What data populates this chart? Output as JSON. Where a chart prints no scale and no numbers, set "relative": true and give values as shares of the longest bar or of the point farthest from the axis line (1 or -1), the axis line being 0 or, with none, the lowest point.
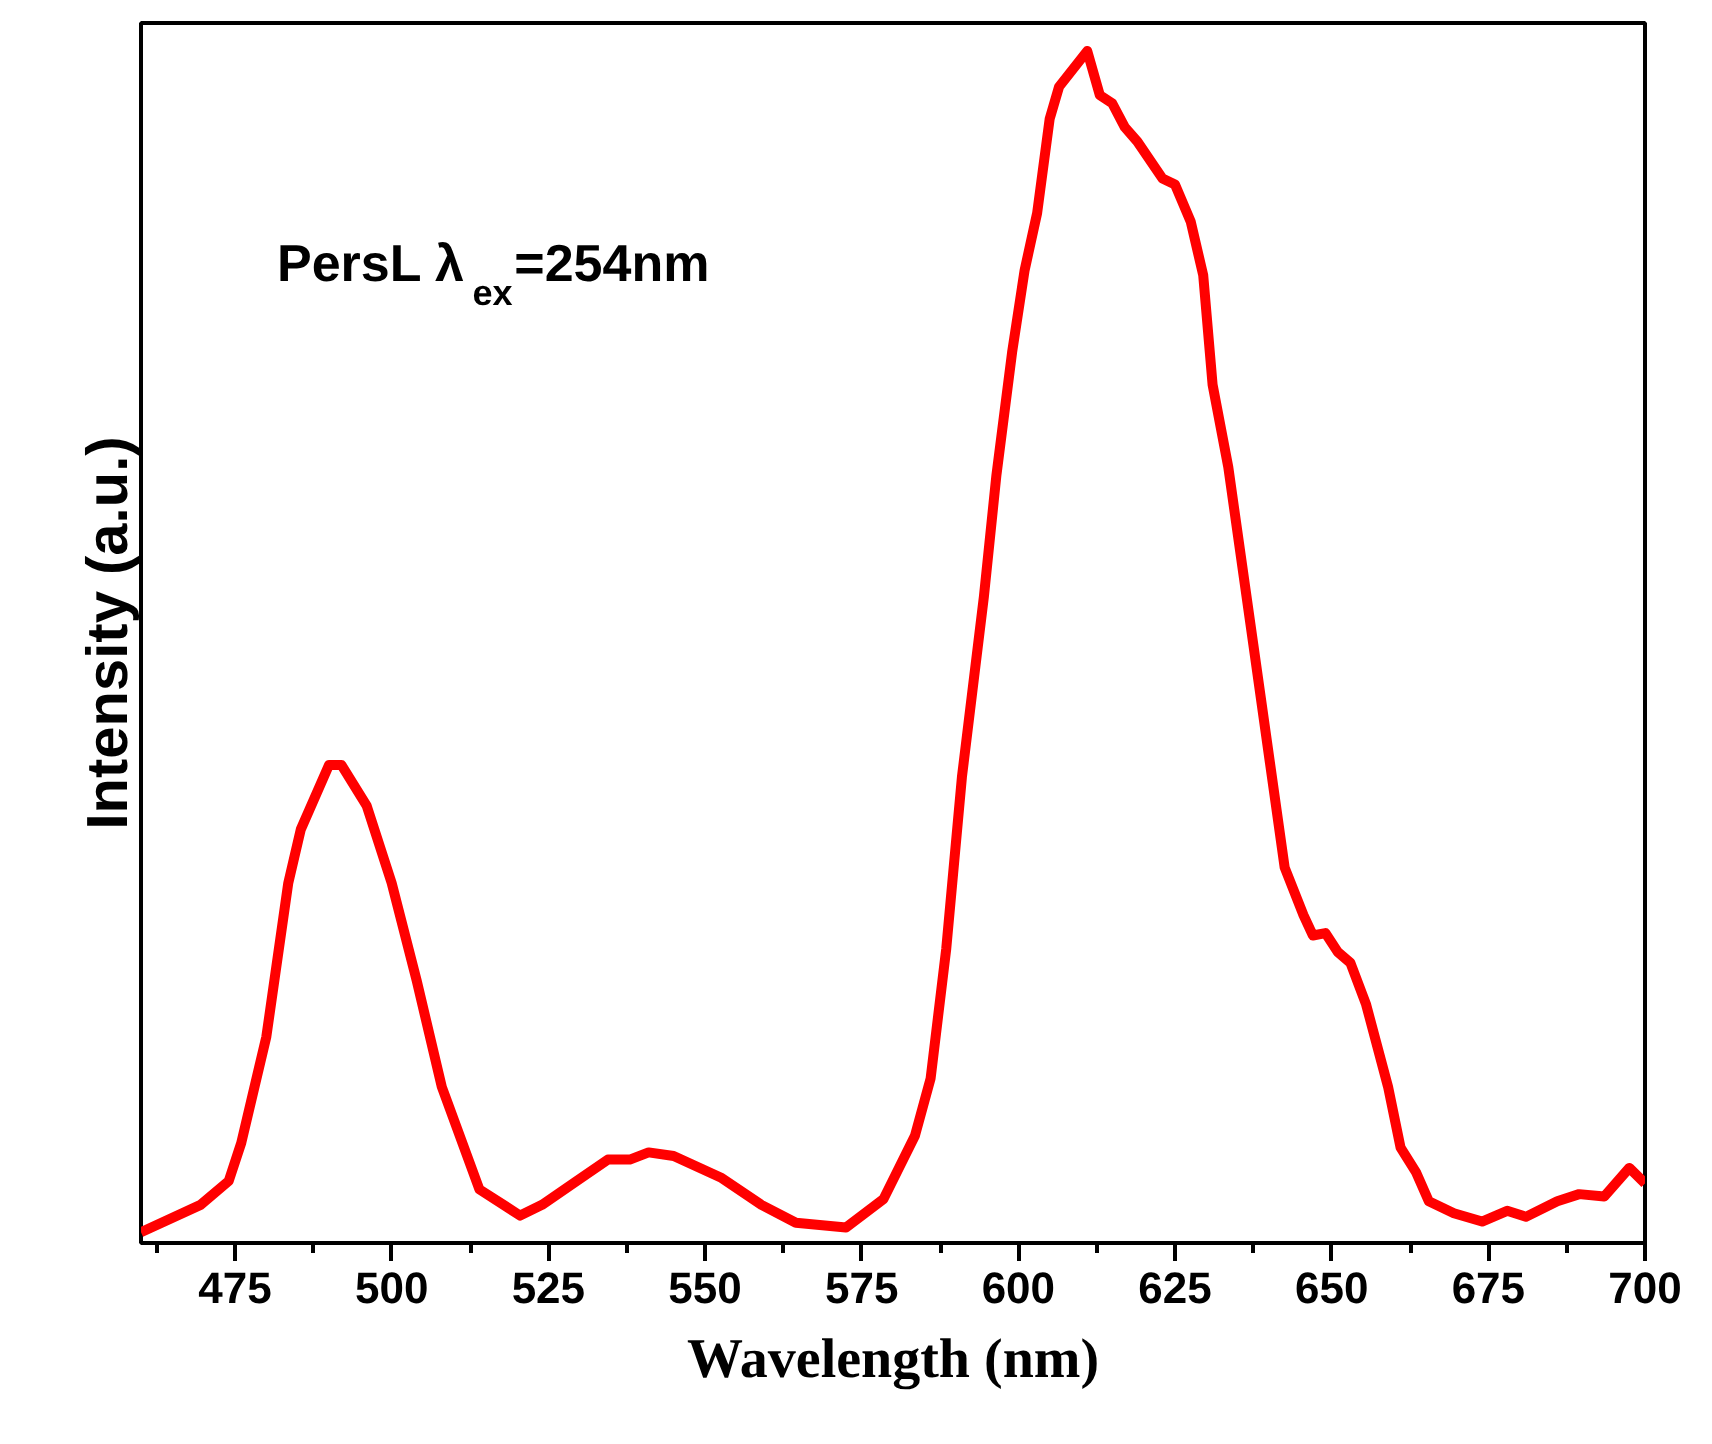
{
  "chart_data": {
    "type": "line",
    "relative": true,
    "xlabel": "Wavelength (nm)",
    "ylabel": "Intensity (a.u.)",
    "annotations": [
      "PersL λ$_{ex}$=254nm"
    ],
    "xlim": [
      460,
      700
    ],
    "xticks": [
      475,
      500,
      525,
      550,
      575,
      600,
      625,
      650,
      675,
      700
    ],
    "grid": false,
    "marker": "none",
    "line_style": "solid",
    "series": [
      {
        "color": "#ff0000",
        "x": [
          460,
          469.5,
          474,
          476,
          480,
          483.5,
          485.5,
          490,
          492,
          496,
          500,
          504,
          508,
          514,
          520.5,
          524,
          529.5,
          534.5,
          538,
          541,
          545,
          552.5,
          559,
          564.5,
          572.5,
          578.5,
          583.5,
          586,
          588.5,
          591,
          594.5,
          596.5,
          599,
          601,
          603,
          605,
          606.5,
          611,
          613,
          615,
          617,
          619,
          623,
          625,
          627.5,
          629.5,
          631,
          633.5,
          637.5,
          642.5,
          645.5,
          647,
          649,
          651,
          653,
          655.5,
          659,
          661,
          663.5,
          665.5,
          669.5,
          674,
          678,
          681,
          686,
          689.5,
          693.5,
          697.5,
          700
        ],
        "values": [
          0.009,
          0.032,
          0.052,
          0.084,
          0.173,
          0.302,
          0.347,
          0.401,
          0.401,
          0.367,
          0.302,
          0.22,
          0.131,
          0.045,
          0.023,
          0.032,
          0.052,
          0.07,
          0.07,
          0.076,
          0.073,
          0.055,
          0.032,
          0.017,
          0.013,
          0.037,
          0.09,
          0.138,
          0.247,
          0.391,
          0.542,
          0.644,
          0.747,
          0.816,
          0.864,
          0.943,
          0.97,
          1.0,
          0.963,
          0.956,
          0.936,
          0.924,
          0.893,
          0.888,
          0.857,
          0.812,
          0.72,
          0.651,
          0.502,
          0.315,
          0.275,
          0.258,
          0.26,
          0.244,
          0.235,
          0.2,
          0.131,
          0.08,
          0.059,
          0.035,
          0.025,
          0.018,
          0.027,
          0.022,
          0.035,
          0.041,
          0.039,
          0.063,
          0.05
        ]
      }
    ]
  }
}
